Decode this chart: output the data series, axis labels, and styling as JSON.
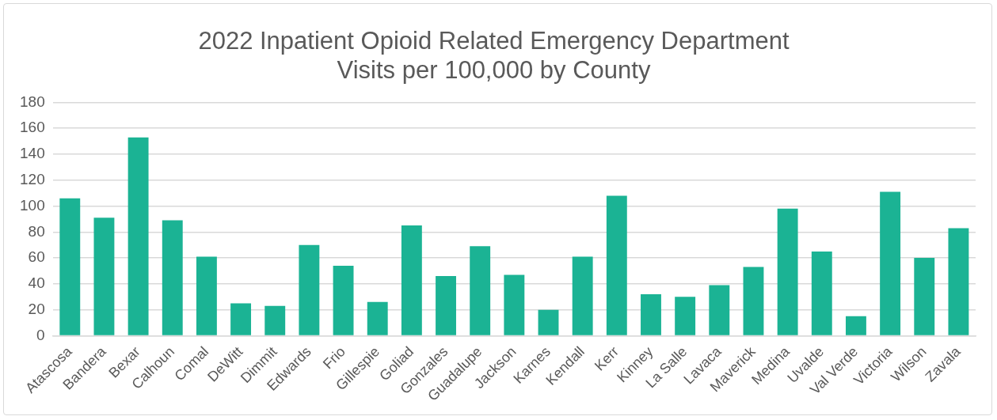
{
  "chart_data": {
    "type": "bar",
    "title": [
      "2022 Inpatient Opioid Related Emergency Department",
      "Visits per 100,000 by County"
    ],
    "categories": [
      "Atascosa",
      "Bandera",
      "Bexar",
      "Calhoun",
      "Comal",
      "DeWitt",
      "Dimmit",
      "Edwards",
      "Frio",
      "Gillespie",
      "Goliad",
      "Gonzales",
      "Guadalupe",
      "Jackson",
      "Karnes",
      "Kendall",
      "Kerr",
      "Kinney",
      "La Salle",
      "Lavaca",
      "Maverick",
      "Medina",
      "Uvalde",
      "Val Verde",
      "Victoria",
      "Wilson",
      "Zavala"
    ],
    "values": [
      106,
      91,
      153,
      89,
      61,
      25,
      23,
      70,
      54,
      26,
      85,
      46,
      69,
      47,
      20,
      61,
      108,
      32,
      30,
      39,
      53,
      98,
      65,
      15,
      111,
      60,
      83
    ],
    "color": "#1bb394",
    "ylim": [
      0,
      180
    ],
    "yticks": [
      0,
      20,
      40,
      60,
      80,
      100,
      120,
      140,
      160,
      180
    ],
    "grid": "y",
    "legend": false
  }
}
